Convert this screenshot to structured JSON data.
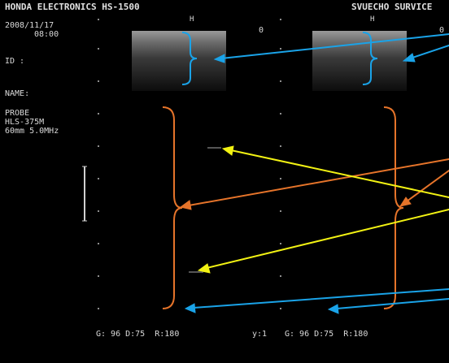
{
  "header": {
    "device_title": "HONDA ELECTRONICS HS-1500",
    "center_mark": "H",
    "right_title": "SVUECHO SURVICE"
  },
  "info": {
    "date": "2008/11/17",
    "time": "08:00",
    "id_label": "ID :",
    "name_label": "NAME:",
    "probe_label": "PROBE",
    "probe_model": "HLS-375M",
    "probe_spec": "60mm 5.0MHz"
  },
  "panels": {
    "left_depth_marker": "0",
    "right_depth_marker": "0"
  },
  "footer": {
    "left_settings": "G: 96 D:75  R:180",
    "right_frame": "y:1",
    "right_settings": "G: 96 D:75  R:180"
  },
  "colors": {
    "background": "#000000",
    "annotation_blue": "#1aa3e8",
    "annotation_orange": "#e6742a",
    "annotation_yellow": "#f2f213",
    "scan_fill": "#8a8a8a"
  }
}
